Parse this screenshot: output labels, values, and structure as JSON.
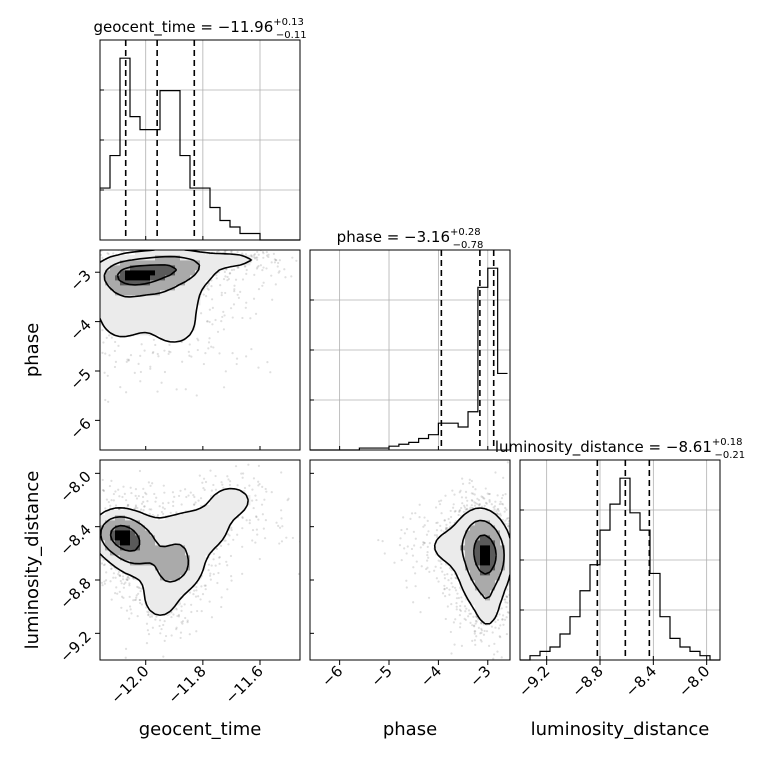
{
  "chart_data": {
    "type": "corner",
    "parameters": [
      "geocent_time",
      "phase",
      "luminosity_distance"
    ],
    "titles": {
      "geocent_time": {
        "name": "geocent_time",
        "value": "−11.96",
        "plus": "+0.13",
        "minus": "−0.11"
      },
      "phase": {
        "name": "phase",
        "value": "−3.16",
        "plus": "+0.28",
        "minus": "−0.78"
      },
      "luminosity_distance": {
        "name": "luminosity_distance",
        "value": "−8.61",
        "plus": "+0.18",
        "minus": "−0.21"
      }
    },
    "ranges": {
      "geocent_time": [
        -12.16,
        -11.46
      ],
      "phase": [
        -6.6,
        -2.55
      ],
      "luminosity_distance": [
        -9.4,
        -7.9
      ]
    },
    "ticks": {
      "geocent_time": [
        -12.0,
        -11.8,
        -11.6
      ],
      "phase": [
        -6,
        -5,
        -4,
        -3
      ],
      "luminosity_distance": [
        -9.2,
        -8.8,
        -8.4,
        -8.0
      ]
    },
    "tick_labels": {
      "geocent_time": [
        "−12.0",
        "−11.8",
        "−11.6"
      ],
      "phase": [
        "−6",
        "−5",
        "−4",
        "−3"
      ],
      "luminosity_distance": [
        "−9.2",
        "−8.8",
        "−8.4",
        "−8.0"
      ]
    },
    "quantiles": {
      "geocent_time": [
        -12.07,
        -11.96,
        -11.83
      ],
      "phase": [
        -3.94,
        -3.16,
        -2.88
      ],
      "luminosity_distance": [
        -8.82,
        -8.61,
        -8.43
      ]
    },
    "histograms": {
      "geocent_time": {
        "bins": [
          -12.16,
          -12.125,
          -12.09,
          -12.055,
          -12.02,
          -11.985,
          -11.95,
          -11.915,
          -11.88,
          -11.845,
          -11.81,
          -11.775,
          -11.74,
          -11.705,
          -11.67,
          -11.635,
          -11.6,
          -11.565,
          -11.53,
          -11.495,
          -11.46
        ],
        "counts": [
          8,
          13,
          28,
          19,
          17,
          17,
          23,
          23,
          13,
          8,
          8,
          5,
          3,
          2,
          1,
          1,
          0,
          0,
          0,
          0
        ]
      },
      "phase": {
        "bins": [
          -6.6,
          -6.4,
          -6.2,
          -6.0,
          -5.8,
          -5.6,
          -5.4,
          -5.2,
          -5.0,
          -4.8,
          -4.6,
          -4.4,
          -4.2,
          -4.0,
          -3.8,
          -3.6,
          -3.4,
          -3.2,
          -3.0,
          -2.8,
          -2.6
        ],
        "counts": [
          0,
          0,
          0,
          0,
          0,
          1,
          1,
          1,
          2,
          3,
          4,
          6,
          8,
          14,
          14,
          12,
          20,
          85,
          95,
          40
        ]
      },
      "luminosity_distance": {
        "bins": [
          -9.4,
          -9.325,
          -9.25,
          -9.175,
          -9.1,
          -9.025,
          -8.95,
          -8.875,
          -8.8,
          -8.725,
          -8.65,
          -8.575,
          -8.5,
          -8.425,
          -8.35,
          -8.275,
          -8.2,
          -8.125,
          -8.05,
          -7.975,
          -7.9
        ],
        "counts": [
          0,
          1,
          2,
          3,
          6,
          10,
          16,
          22,
          30,
          36,
          42,
          34,
          30,
          20,
          10,
          5,
          3,
          2,
          1,
          0
        ]
      }
    },
    "density_peaks": {
      "phase_vs_geocent_time": [
        {
          "x": -12.05,
          "y": -3.05,
          "sx": 0.07,
          "sy": 0.2,
          "w": 1.0
        },
        {
          "x": -11.9,
          "y": -2.9,
          "sx": 0.08,
          "sy": 0.2,
          "w": 0.8
        },
        {
          "x": -11.96,
          "y": -3.25,
          "sx": 0.1,
          "sy": 0.35,
          "w": 0.45
        },
        {
          "x": -12.1,
          "y": -3.7,
          "sx": 0.06,
          "sy": 0.5,
          "w": 0.35
        },
        {
          "x": -11.9,
          "y": -4.1,
          "sx": 0.1,
          "sy": 0.5,
          "w": 0.25
        },
        {
          "x": -11.7,
          "y": -2.75,
          "sx": 0.08,
          "sy": 0.12,
          "w": 0.3
        }
      ],
      "luminosity_distance_vs_geocent_time": [
        {
          "x": -12.1,
          "y": -8.45,
          "sx": 0.05,
          "sy": 0.1,
          "w": 1.0
        },
        {
          "x": -12.04,
          "y": -8.55,
          "sx": 0.05,
          "sy": 0.12,
          "w": 0.8
        },
        {
          "x": -11.9,
          "y": -8.7,
          "sx": 0.06,
          "sy": 0.12,
          "w": 0.7
        },
        {
          "x": -11.85,
          "y": -8.45,
          "sx": 0.1,
          "sy": 0.12,
          "w": 0.4
        },
        {
          "x": -11.95,
          "y": -8.95,
          "sx": 0.05,
          "sy": 0.12,
          "w": 0.3
        },
        {
          "x": -11.7,
          "y": -8.2,
          "sx": 0.08,
          "sy": 0.12,
          "w": 0.25
        }
      ],
      "luminosity_distance_vs_phase": [
        {
          "x": -3.0,
          "y": -8.6,
          "sx": 0.25,
          "sy": 0.14,
          "w": 1.0
        },
        {
          "x": -3.1,
          "y": -8.75,
          "sx": 0.3,
          "sy": 0.18,
          "w": 0.6
        },
        {
          "x": -3.6,
          "y": -8.55,
          "sx": 0.5,
          "sy": 0.12,
          "w": 0.35
        },
        {
          "x": -3.2,
          "y": -8.4,
          "sx": 0.25,
          "sy": 0.1,
          "w": 0.4
        },
        {
          "x": -3.0,
          "y": -9.0,
          "sx": 0.15,
          "sy": 0.12,
          "w": 0.3
        }
      ]
    },
    "grid": true,
    "colors": {
      "line": "#000000",
      "grid": "#b0b0b0",
      "scatter": "#808080",
      "density_high": "#000000",
      "density_low": "#ffffff"
    }
  }
}
